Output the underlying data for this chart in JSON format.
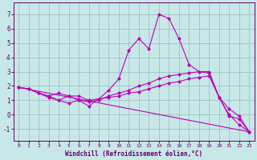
{
  "xlabel": "Windchill (Refroidissement éolien,°C)",
  "xlim": [
    -0.5,
    23.5
  ],
  "ylim": [
    -1.8,
    7.8
  ],
  "yticks": [
    -1,
    0,
    1,
    2,
    3,
    4,
    5,
    6,
    7
  ],
  "xticks": [
    0,
    1,
    2,
    3,
    4,
    5,
    6,
    7,
    8,
    9,
    10,
    11,
    12,
    13,
    14,
    15,
    16,
    17,
    18,
    19,
    20,
    21,
    22,
    23
  ],
  "bg_color": "#c8e8e8",
  "grid_color": "#99bbbb",
  "line_color": "#bb00bb",
  "curve1_x": [
    0,
    1,
    2,
    3,
    4,
    5,
    6,
    7,
    8,
    9,
    10,
    11,
    12,
    13,
    14,
    15,
    16,
    17,
    18,
    19,
    20,
    21,
    22,
    23
  ],
  "curve1_y": [
    1.9,
    1.8,
    1.5,
    1.2,
    1.0,
    0.8,
    1.0,
    0.6,
    1.1,
    1.7,
    2.5,
    4.5,
    5.3,
    4.6,
    7.0,
    6.7,
    5.3,
    3.5,
    3.0,
    2.9,
    1.2,
    -0.1,
    -0.3,
    -1.2
  ],
  "curve2_x": [
    0,
    1,
    2,
    3,
    4,
    5,
    6,
    7,
    8,
    9,
    10,
    11,
    12,
    13,
    14,
    15,
    16,
    17,
    18,
    19,
    20,
    21,
    22,
    23
  ],
  "curve2_y": [
    1.9,
    1.8,
    1.5,
    1.3,
    1.5,
    1.3,
    1.0,
    0.9,
    1.0,
    1.3,
    1.5,
    1.7,
    2.0,
    2.2,
    2.5,
    2.7,
    2.8,
    2.9,
    3.0,
    3.0,
    1.2,
    0.4,
    -0.1,
    -1.2
  ],
  "curve3_x": [
    0,
    1,
    2,
    3,
    4,
    5,
    6,
    7,
    8,
    9,
    10,
    11,
    12,
    13,
    14,
    15,
    16,
    17,
    18,
    19,
    20,
    21,
    22,
    23
  ],
  "curve3_y": [
    1.9,
    1.8,
    1.5,
    1.3,
    1.0,
    1.3,
    1.3,
    1.0,
    1.1,
    1.2,
    1.3,
    1.5,
    1.6,
    1.8,
    2.0,
    2.2,
    2.3,
    2.5,
    2.6,
    2.7,
    1.2,
    0.0,
    -0.7,
    -1.2
  ],
  "curve4_x": [
    0,
    23
  ],
  "curve4_y": [
    1.9,
    -1.2
  ],
  "tick_color": "#660066",
  "label_fontsize": 4.5,
  "xlabel_fontsize": 5.5
}
